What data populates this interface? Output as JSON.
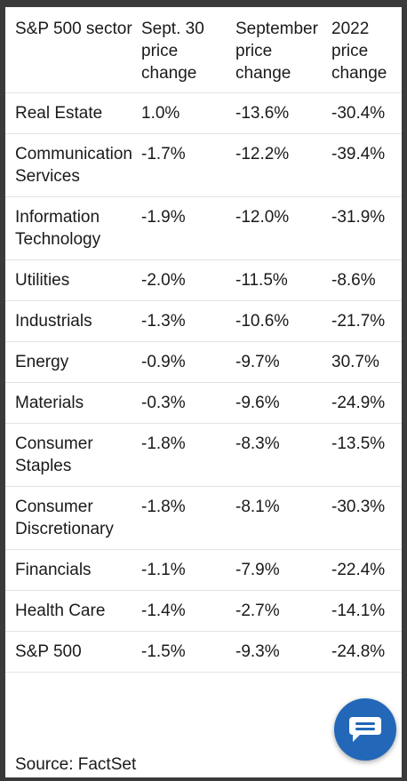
{
  "table": {
    "headers": [
      "S&P 500 sector",
      "Sept. 30 price change",
      "September price change",
      "2022 price change"
    ],
    "rows": [
      [
        "Real Estate",
        "1.0%",
        "-13.6%",
        "-30.4%"
      ],
      [
        "Communication Services",
        "-1.7%",
        "-12.2%",
        "-39.4%"
      ],
      [
        "Information Technology",
        "-1.9%",
        "-12.0%",
        "-31.9%"
      ],
      [
        "Utilities",
        "-2.0%",
        "-11.5%",
        "-8.6%"
      ],
      [
        "Industrials",
        "-1.3%",
        "-10.6%",
        "-21.7%"
      ],
      [
        "Energy",
        "-0.9%",
        "-9.7%",
        "30.7%"
      ],
      [
        "Materials",
        "-0.3%",
        "-9.6%",
        "-24.9%"
      ],
      [
        "Consumer Staples",
        "-1.8%",
        "-8.3%",
        "-13.5%"
      ],
      [
        "Consumer Discretionary",
        "-1.8%",
        "-8.1%",
        "-30.3%"
      ],
      [
        "Financials",
        "-1.1%",
        "-7.9%",
        "-22.4%"
      ],
      [
        "Health Care",
        "-1.4%",
        "-2.7%",
        "-14.1%"
      ],
      [
        "S&P 500",
        "-1.5%",
        "-9.3%",
        "-24.8%"
      ]
    ]
  },
  "footer": {
    "source": "Source: FactSet"
  },
  "chat_button": {
    "icon": "chat-bubble-icon",
    "color": "#2367b8"
  }
}
